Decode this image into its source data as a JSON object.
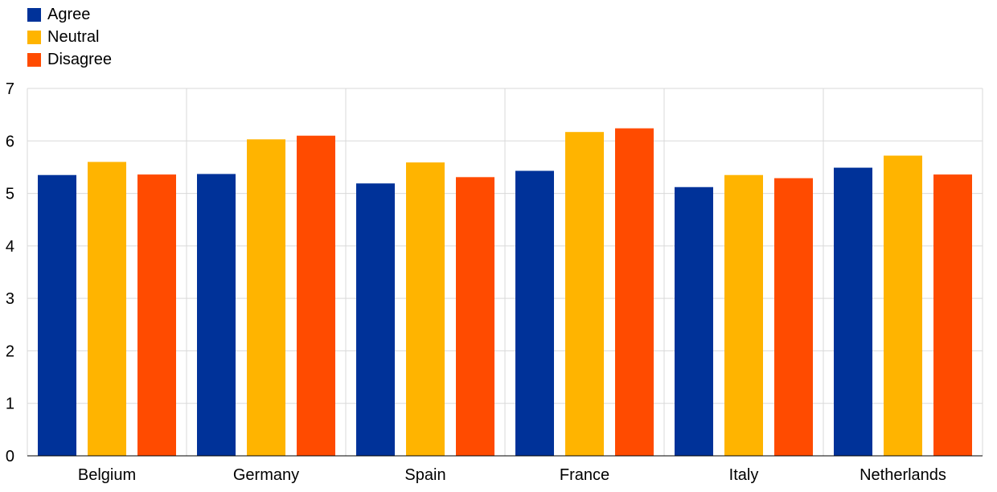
{
  "chart_data": {
    "type": "bar",
    "categories": [
      "Belgium",
      "Germany",
      "Spain",
      "France",
      "Italy",
      "Netherlands"
    ],
    "series": [
      {
        "name": "Agree",
        "color": "#003299",
        "values": [
          5.35,
          5.37,
          5.19,
          5.43,
          5.12,
          5.49
        ]
      },
      {
        "name": "Neutral",
        "color": "#FFB400",
        "values": [
          5.6,
          6.03,
          5.59,
          6.17,
          5.35,
          5.72
        ]
      },
      {
        "name": "Disagree",
        "color": "#FF4B00",
        "values": [
          5.36,
          6.1,
          5.31,
          6.24,
          5.29,
          5.36
        ]
      }
    ],
    "ylim": [
      0,
      7
    ],
    "yticks": [
      "0",
      "1",
      "2",
      "3",
      "4",
      "5",
      "6",
      "7"
    ],
    "grid": true,
    "legend_position": "top-left"
  }
}
